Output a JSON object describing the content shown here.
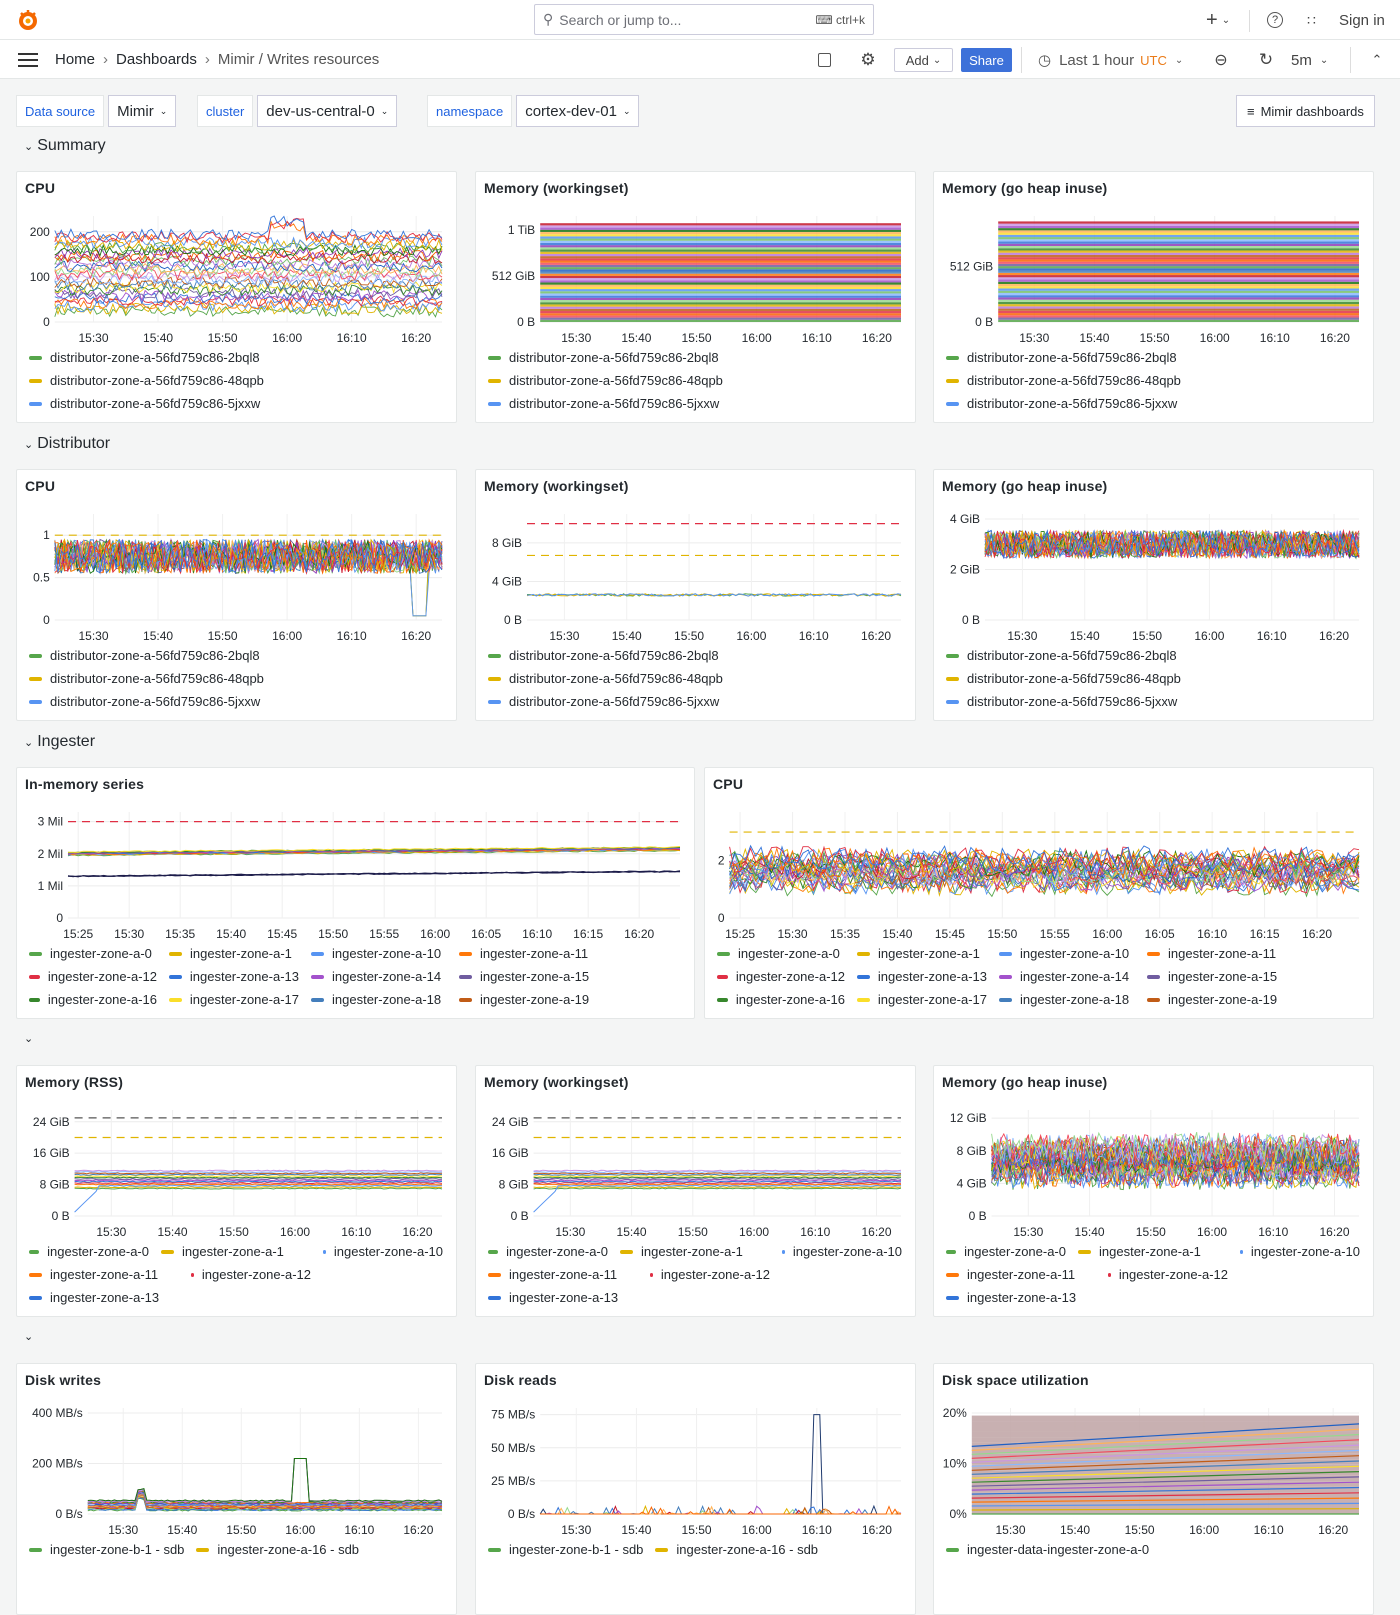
{
  "topbar": {
    "search_placeholder": "Search or jump to...",
    "search_shortcut": "ctrl+k",
    "sign_in": "Sign in"
  },
  "breadcrumb": [
    "Home",
    "Dashboards",
    "Mimir / Writes resources"
  ],
  "toolbar": {
    "add": "Add",
    "share": "Share",
    "time_range": "Last 1 hour",
    "timezone": "UTC",
    "refresh": "5m",
    "accent": "#3d71d9"
  },
  "variables": [
    {
      "label": "Data source",
      "value": "Mimir"
    },
    {
      "label": "cluster",
      "value": "dev-us-central-0"
    },
    {
      "label": "namespace",
      "value": "cortex-dev-01"
    }
  ],
  "dashboards_link": "Mimir dashboards",
  "rows": [
    {
      "title": "Summary"
    },
    {
      "title": "Distributor"
    },
    {
      "title": "Ingester"
    },
    {
      "title": ""
    },
    {
      "title": ""
    }
  ],
  "legend_sets": {
    "distributor": [
      {
        "label": "distributor-zone-a-56fd759c86-2bql8",
        "color": "#56a64b"
      },
      {
        "label": "distributor-zone-a-56fd759c86-48qpb",
        "color": "#e0b400"
      },
      {
        "label": "distributor-zone-a-56fd759c86-5jxxw",
        "color": "#5794f2"
      }
    ],
    "ingester12": [
      {
        "label": "ingester-zone-a-0",
        "color": "#56a64b"
      },
      {
        "label": "ingester-zone-a-1",
        "color": "#e0b400"
      },
      {
        "label": "ingester-zone-a-10",
        "color": "#5794f2"
      },
      {
        "label": "ingester-zone-a-11",
        "color": "#ff780a"
      },
      {
        "label": "ingester-zone-a-12",
        "color": "#e02f44"
      },
      {
        "label": "ingester-zone-a-13",
        "color": "#3274d9"
      },
      {
        "label": "ingester-zone-a-14",
        "color": "#a352cc"
      },
      {
        "label": "ingester-zone-a-15",
        "color": "#705da0"
      },
      {
        "label": "ingester-zone-a-16",
        "color": "#37872d"
      },
      {
        "label": "ingester-zone-a-17",
        "color": "#fade2a"
      },
      {
        "label": "ingester-zone-a-18",
        "color": "#447ebc"
      },
      {
        "label": "ingester-zone-a-19",
        "color": "#c15c17"
      }
    ],
    "ingester6": [
      {
        "label": "ingester-zone-a-0",
        "color": "#56a64b"
      },
      {
        "label": "ingester-zone-a-1",
        "color": "#e0b400"
      },
      {
        "label": "ingester-zone-a-10",
        "color": "#5794f2"
      },
      {
        "label": "ingester-zone-a-11",
        "color": "#ff780a"
      },
      {
        "label": "ingester-zone-a-12",
        "color": "#e02f44"
      },
      {
        "label": "ingester-zone-a-13",
        "color": "#3274d9"
      }
    ],
    "disk": [
      {
        "label": "ingester-zone-b-1 - sdb",
        "color": "#56a64b"
      },
      {
        "label": "ingester-zone-a-16 - sdb",
        "color": "#e0b400"
      }
    ],
    "diskspace": [
      {
        "label": "ingester-data-ingester-zone-a-0",
        "color": "#56a64b"
      }
    ]
  },
  "panels": [
    {
      "row": 0,
      "title": "CPU",
      "yticks": [
        {
          "v": 0,
          "l": "0"
        },
        {
          "v": 100,
          "l": "100"
        },
        {
          "v": 200,
          "l": "200"
        }
      ],
      "ymax": 235,
      "xticks": [
        "15:30",
        "15:40",
        "15:50",
        "16:00",
        "16:10",
        "16:20"
      ],
      "legend": "distributor",
      "thresholds": []
    },
    {
      "row": 0,
      "title": "Memory (workingset)",
      "yticks": [
        {
          "v": 0,
          "l": "0 B"
        },
        {
          "v": 512,
          "l": "512 GiB"
        },
        {
          "v": 1024,
          "l": "1 TiB"
        }
      ],
      "ymax": 1180,
      "xticks": [
        "15:30",
        "15:40",
        "15:50",
        "16:00",
        "16:10",
        "16:20"
      ],
      "legend": "distributor",
      "thresholds": []
    },
    {
      "row": 0,
      "title": "Memory (go heap inuse)",
      "yticks": [
        {
          "v": 0,
          "l": "0 B"
        },
        {
          "v": 512,
          "l": "512 GiB"
        }
      ],
      "ymax": 980,
      "xticks": [
        "15:30",
        "15:40",
        "15:50",
        "16:00",
        "16:10",
        "16:20"
      ],
      "legend": "distributor",
      "thresholds": []
    },
    {
      "row": 1,
      "title": "CPU",
      "yticks": [
        {
          "v": 0,
          "l": "0"
        },
        {
          "v": 0.5,
          "l": "0.5"
        },
        {
          "v": 1,
          "l": "1"
        }
      ],
      "ymax": 1.25,
      "xticks": [
        "15:30",
        "15:40",
        "15:50",
        "16:00",
        "16:10",
        "16:20"
      ],
      "legend": "distributor",
      "thresholds": [
        {
          "v": 1,
          "c": "#e0b400"
        }
      ]
    },
    {
      "row": 1,
      "title": "Memory (workingset)",
      "yticks": [
        {
          "v": 0,
          "l": "0 B"
        },
        {
          "v": 4,
          "l": "4 GiB"
        },
        {
          "v": 8,
          "l": "8 GiB"
        }
      ],
      "ymax": 11,
      "xticks": [
        "15:30",
        "15:40",
        "15:50",
        "16:00",
        "16:10",
        "16:20"
      ],
      "legend": "distributor",
      "thresholds": [
        {
          "v": 10,
          "c": "#e02f44"
        },
        {
          "v": 6.7,
          "c": "#e0b400"
        }
      ]
    },
    {
      "row": 1,
      "title": "Memory (go heap inuse)",
      "yticks": [
        {
          "v": 0,
          "l": "0 B"
        },
        {
          "v": 2,
          "l": "2 GiB"
        },
        {
          "v": 4,
          "l": "4 GiB"
        }
      ],
      "ymax": 4.2,
      "xticks": [
        "15:30",
        "15:40",
        "15:50",
        "16:00",
        "16:10",
        "16:20"
      ],
      "legend": "distributor",
      "thresholds": []
    },
    {
      "row": 2,
      "title": "In-memory series",
      "yticks": [
        {
          "v": 0,
          "l": "0"
        },
        {
          "v": 1,
          "l": "1 Mil"
        },
        {
          "v": 2,
          "l": "2 Mil"
        },
        {
          "v": 3,
          "l": "3 Mil"
        }
      ],
      "ymax": 3.3,
      "xticks": [
        "15:25",
        "15:30",
        "15:35",
        "15:40",
        "15:45",
        "15:50",
        "15:55",
        "16:00",
        "16:05",
        "16:10",
        "16:15",
        "16:20"
      ],
      "legend": "ingester12",
      "thresholds": [
        {
          "v": 3,
          "c": "#e02f44"
        }
      ]
    },
    {
      "row": 2,
      "title": "CPU",
      "yticks": [
        {
          "v": 0,
          "l": "0"
        },
        {
          "v": 2,
          "l": "2"
        }
      ],
      "ymax": 3.7,
      "xticks": [
        "15:25",
        "15:30",
        "15:35",
        "15:40",
        "15:45",
        "15:50",
        "15:55",
        "16:00",
        "16:05",
        "16:10",
        "16:15",
        "16:20"
      ],
      "legend": "ingester12",
      "thresholds": [
        {
          "v": 3,
          "c": "#e0b400"
        }
      ]
    },
    {
      "row": 3,
      "title": "Memory (RSS)",
      "yticks": [
        {
          "v": 0,
          "l": "0 B"
        },
        {
          "v": 8,
          "l": "8 GiB"
        },
        {
          "v": 16,
          "l": "16 GiB"
        },
        {
          "v": 24,
          "l": "24 GiB"
        }
      ],
      "ymax": 27,
      "xticks": [
        "15:30",
        "15:40",
        "15:50",
        "16:00",
        "16:10",
        "16:20"
      ],
      "legend": "ingester6",
      "thresholds": [
        {
          "v": 25,
          "c": "#555555"
        },
        {
          "v": 20,
          "c": "#e0b400"
        }
      ]
    },
    {
      "row": 3,
      "title": "Memory (workingset)",
      "yticks": [
        {
          "v": 0,
          "l": "0 B"
        },
        {
          "v": 8,
          "l": "8 GiB"
        },
        {
          "v": 16,
          "l": "16 GiB"
        },
        {
          "v": 24,
          "l": "24 GiB"
        }
      ],
      "ymax": 27,
      "xticks": [
        "15:30",
        "15:40",
        "15:50",
        "16:00",
        "16:10",
        "16:20"
      ],
      "legend": "ingester6",
      "thresholds": [
        {
          "v": 25,
          "c": "#555555"
        },
        {
          "v": 20,
          "c": "#e0b400"
        }
      ]
    },
    {
      "row": 3,
      "title": "Memory (go heap inuse)",
      "yticks": [
        {
          "v": 0,
          "l": "0 B"
        },
        {
          "v": 4,
          "l": "4 GiB"
        },
        {
          "v": 8,
          "l": "8 GiB"
        },
        {
          "v": 12,
          "l": "12 GiB"
        }
      ],
      "ymax": 13,
      "xticks": [
        "15:30",
        "15:40",
        "15:50",
        "16:00",
        "16:10",
        "16:20"
      ],
      "legend": "ingester6",
      "thresholds": []
    },
    {
      "row": 4,
      "title": "Disk writes",
      "yticks": [
        {
          "v": 0,
          "l": "0 B/s"
        },
        {
          "v": 200,
          "l": "200 MB/s"
        },
        {
          "v": 400,
          "l": "400 MB/s"
        }
      ],
      "ymax": 420,
      "xticks": [
        "15:30",
        "15:40",
        "15:50",
        "16:00",
        "16:10",
        "16:20"
      ],
      "legend": "disk",
      "thresholds": []
    },
    {
      "row": 4,
      "title": "Disk reads",
      "yticks": [
        {
          "v": 0,
          "l": "0 B/s"
        },
        {
          "v": 25,
          "l": "25 MB/s"
        },
        {
          "v": 50,
          "l": "50 MB/s"
        },
        {
          "v": 75,
          "l": "75 MB/s"
        }
      ],
      "ymax": 80,
      "xticks": [
        "15:30",
        "15:40",
        "15:50",
        "16:00",
        "16:10",
        "16:20"
      ],
      "legend": "disk",
      "thresholds": []
    },
    {
      "row": 4,
      "title": "Disk space utilization",
      "yticks": [
        {
          "v": 0,
          "l": "0%"
        },
        {
          "v": 10,
          "l": "10%"
        },
        {
          "v": 20,
          "l": "20%"
        }
      ],
      "ymax": 21,
      "xticks": [
        "15:30",
        "15:40",
        "15:50",
        "16:00",
        "16:10",
        "16:20"
      ],
      "legend": "diskspace",
      "thresholds": []
    }
  ]
}
